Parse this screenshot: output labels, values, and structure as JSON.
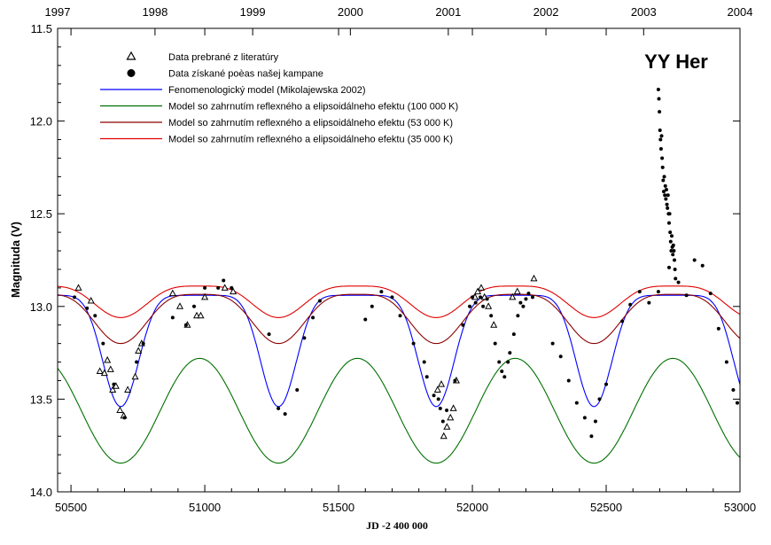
{
  "chart_data": {
    "type": "scatter",
    "title": "YY Her",
    "xlabel": "JD -2 400 000",
    "ylabel": "Magnituda (V)",
    "xlim": [
      50450,
      53000
    ],
    "ylim": [
      11.5,
      14.0
    ],
    "y_inverted": true,
    "x_ticks": [
      "50500",
      "51000",
      "51500",
      "52000",
      "52500",
      "53000"
    ],
    "y_ticks": [
      "11.5",
      "12.0",
      "12.5",
      "13.0",
      "13.5",
      "14.0"
    ],
    "top_axis": {
      "ticks": [
        "1997",
        "1998",
        "1999",
        "2000",
        "2001",
        "2002",
        "2003",
        "2004"
      ],
      "tick_jd": [
        50449,
        50814,
        51179,
        51544,
        51910,
        52275,
        52640,
        53005
      ]
    },
    "legend_position": "top-left",
    "period_days": 589.5,
    "min_epoch_jd": 50686,
    "series": [
      {
        "name": "Data prebrané z literatúry",
        "kind": "points",
        "marker": "open-triangle",
        "color": "#000000",
        "x": [
          50528,
          50575,
          50608,
          50625,
          50636,
          50648,
          50656,
          50668,
          50683,
          50697,
          50712,
          50740,
          50752,
          50764,
          50880,
          50907,
          50935,
          50970,
          50985,
          51000,
          51075,
          51106,
          51870,
          51884,
          51893,
          51905,
          51918,
          51929,
          51940,
          52010,
          52020,
          52033,
          52045,
          52060,
          52080,
          52150,
          52168,
          52230
        ],
        "y": [
          12.9,
          12.97,
          13.35,
          13.36,
          13.29,
          13.34,
          13.45,
          13.43,
          13.56,
          13.59,
          13.45,
          13.38,
          13.24,
          13.2,
          12.93,
          13.0,
          13.1,
          13.05,
          13.05,
          12.95,
          12.9,
          12.92,
          13.45,
          13.42,
          13.7,
          13.65,
          13.6,
          13.55,
          13.4,
          12.95,
          12.92,
          12.9,
          12.95,
          13.0,
          13.1,
          12.95,
          12.92,
          12.85
        ]
      },
      {
        "name": "Data získané poèas našej kampane",
        "kind": "points",
        "marker": "filled-circle",
        "color": "#000000",
        "x": [
          50513,
          50560,
          50590,
          50620,
          50660,
          50700,
          50745,
          50770,
          50880,
          50930,
          50960,
          51000,
          51050,
          51070,
          51100,
          51240,
          51275,
          51300,
          51345,
          51372,
          51404,
          51430,
          51600,
          51625,
          51660,
          51700,
          51730,
          51780,
          51820,
          51830,
          51856,
          51873,
          51880,
          51890,
          51904,
          51935,
          51965,
          51990,
          52000,
          52012,
          52030,
          52040,
          52055,
          52070,
          52085,
          52100,
          52110,
          52120,
          52133,
          52140,
          52155,
          52170,
          52180,
          52190,
          52200,
          52210,
          52225,
          52300,
          52330,
          52360,
          52390,
          52420,
          52445,
          52460,
          52475,
          52500,
          52560,
          52590,
          52625,
          52660,
          52695,
          52735,
          52770,
          52800,
          52830,
          52860,
          52890,
          52920,
          52950,
          52975,
          52990
        ],
        "y": [
          12.95,
          13.01,
          13.05,
          13.2,
          13.42,
          13.6,
          13.3,
          13.2,
          13.06,
          13.1,
          13.0,
          12.9,
          12.9,
          12.86,
          12.9,
          13.15,
          13.55,
          13.58,
          13.45,
          13.17,
          13.06,
          12.97,
          13.07,
          13.0,
          12.92,
          12.95,
          13.05,
          13.2,
          13.3,
          13.38,
          13.48,
          13.5,
          13.55,
          13.62,
          13.56,
          13.4,
          13.1,
          13.0,
          12.95,
          12.98,
          12.95,
          13.0,
          12.96,
          13.05,
          13.2,
          13.3,
          13.35,
          13.38,
          13.3,
          13.25,
          13.15,
          13.05,
          12.98,
          13.0,
          12.96,
          12.93,
          12.95,
          13.2,
          13.27,
          13.4,
          13.52,
          13.6,
          13.7,
          13.62,
          13.5,
          13.42,
          13.08,
          12.99,
          12.92,
          12.98,
          12.92,
          12.79,
          12.87,
          12.94,
          12.75,
          12.78,
          12.93,
          13.12,
          13.3,
          13.45,
          13.52
        ]
      },
      {
        "name": "Fenomenologický model (Mikolajewska 2002)",
        "kind": "model",
        "color": "#0000ff",
        "params": {
          "base": 12.94,
          "amplitude": 0.6,
          "exponent": 4
        }
      },
      {
        "name": "Model so zahrnutím reflexného a elipsoidálneho efektu (100 000 K)",
        "kind": "model",
        "color": "#007000",
        "params": {
          "base": 13.28,
          "amplitude": 0.565,
          "exponent": 1
        }
      },
      {
        "name": "Model so zahrnutím reflexného a elipsoidálneho efektu (53 000 K)",
        "kind": "model",
        "color": "#8b0000",
        "params": {
          "base": 12.935,
          "amplitude": 0.265,
          "exponent": 2
        }
      },
      {
        "name": "Model so zahrnutím reflexného a elipsoidálneho efektu (35 000 K)",
        "kind": "model",
        "color": "#e00000",
        "params": {
          "base": 12.89,
          "amplitude": 0.17,
          "exponent": 2
        }
      }
    ],
    "outburst": {
      "x": [
        52695,
        52697,
        52699,
        52701,
        52703,
        52705,
        52707,
        52709,
        52711,
        52713,
        52715,
        52717,
        52719,
        52721,
        52723,
        52725,
        52727,
        52729,
        52731,
        52733,
        52735,
        52737,
        52739,
        52741,
        52743,
        52745,
        52747,
        52749,
        52751,
        52753,
        52755,
        52757,
        52759
      ],
      "y": [
        11.83,
        11.88,
        11.95,
        12.05,
        12.1,
        12.15,
        12.08,
        12.2,
        12.25,
        12.32,
        12.38,
        12.3,
        12.4,
        12.35,
        12.42,
        12.37,
        12.45,
        12.47,
        12.4,
        12.5,
        12.55,
        12.5,
        12.6,
        12.65,
        12.7,
        12.62,
        12.68,
        12.72,
        12.67,
        12.7,
        12.75,
        12.8,
        12.85
      ]
    }
  }
}
